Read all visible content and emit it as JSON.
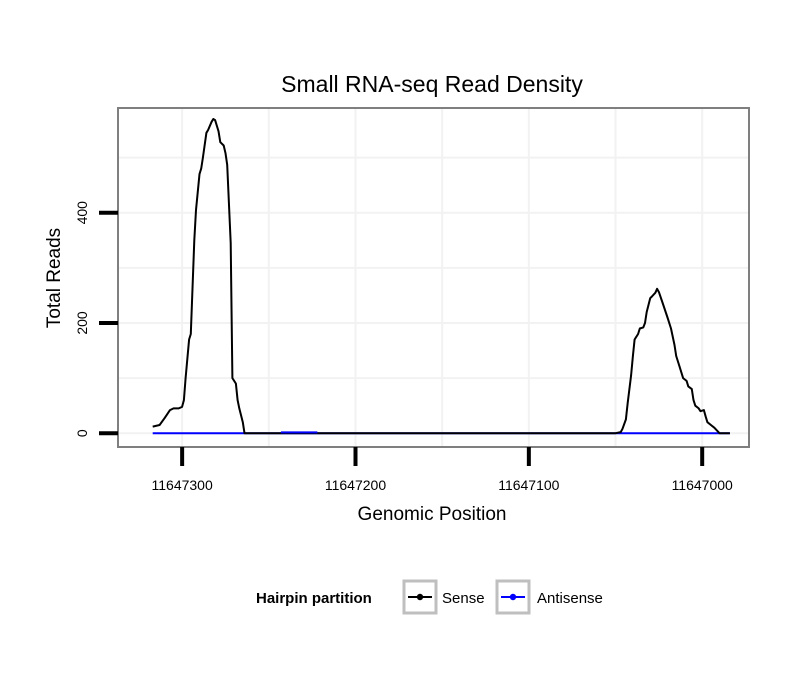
{
  "chart_data": {
    "type": "line",
    "title": "Small RNA-seq Read Density",
    "xlabel": "Genomic Position",
    "ylabel": "Total Reads",
    "x_reversed": true,
    "xlim": [
      11647337,
      11646973
    ],
    "ylim": [
      -25,
      590
    ],
    "x_ticks": [
      11647300,
      11647200,
      11647100,
      11647000
    ],
    "x_tick_labels": [
      "11647300",
      "11647200",
      "11647100",
      "11647000"
    ],
    "y_ticks": [
      0,
      200,
      400
    ],
    "y_tick_labels": [
      "0",
      "200",
      "400"
    ],
    "grid": true,
    "legend": {
      "title": "Hairpin partition",
      "position": "bottom",
      "entries": [
        {
          "label": "Sense",
          "color": "#000000"
        },
        {
          "label": "Antisense",
          "color": "#0000ff"
        }
      ]
    },
    "series": [
      {
        "name": "Sense",
        "color": "#000000",
        "x": [
          11647317,
          11647313,
          11647310,
          11647307,
          11647305,
          11647302,
          11647300,
          11647299,
          11647298,
          11647296,
          11647295,
          11647293,
          11647292,
          11647290,
          11647289,
          11647288,
          11647286,
          11647285,
          11647283,
          11647282,
          11647281,
          11647279,
          11647278,
          11647276,
          11647275,
          11647274,
          11647272,
          11647271,
          11647269,
          11647268,
          11647267,
          11647265,
          11647264,
          11647262,
          11647255,
          11647050,
          11647047,
          11647046,
          11647044,
          11647043,
          11647041,
          11647040,
          11647039,
          11647037,
          11647036,
          11647034,
          11647033,
          11647032,
          11647030,
          11647029,
          11647027,
          11647026,
          11647025,
          11647023,
          11647020,
          11647018,
          11647016,
          11647015,
          11647013,
          11647012,
          11647011,
          11647009,
          11647008,
          11647006,
          11647005,
          11647004,
          11647002,
          11647001,
          11646999,
          11646998,
          11646997,
          11646995,
          11646993,
          11646990,
          11646988,
          11646986,
          11646984
        ],
        "y": [
          12,
          15,
          28,
          42,
          45,
          45,
          48,
          60,
          100,
          170,
          180,
          350,
          405,
          470,
          480,
          500,
          545,
          550,
          565,
          570,
          568,
          548,
          528,
          522,
          508,
          487,
          345,
          100,
          90,
          60,
          45,
          20,
          0,
          0,
          0,
          0,
          2,
          8,
          25,
          55,
          105,
          140,
          170,
          180,
          190,
          192,
          200,
          220,
          245,
          248,
          255,
          262,
          256,
          238,
          210,
          190,
          160,
          140,
          120,
          110,
          100,
          95,
          85,
          80,
          60,
          50,
          45,
          40,
          42,
          30,
          20,
          15,
          10,
          0,
          0,
          0,
          0
        ],
        "x_continued_from": 11647317,
        "x_continued_to": 11646984
      },
      {
        "name": "Antisense",
        "color": "#0000ff",
        "x": [
          11647317,
          11646984
        ],
        "y": [
          0,
          0
        ]
      }
    ]
  }
}
